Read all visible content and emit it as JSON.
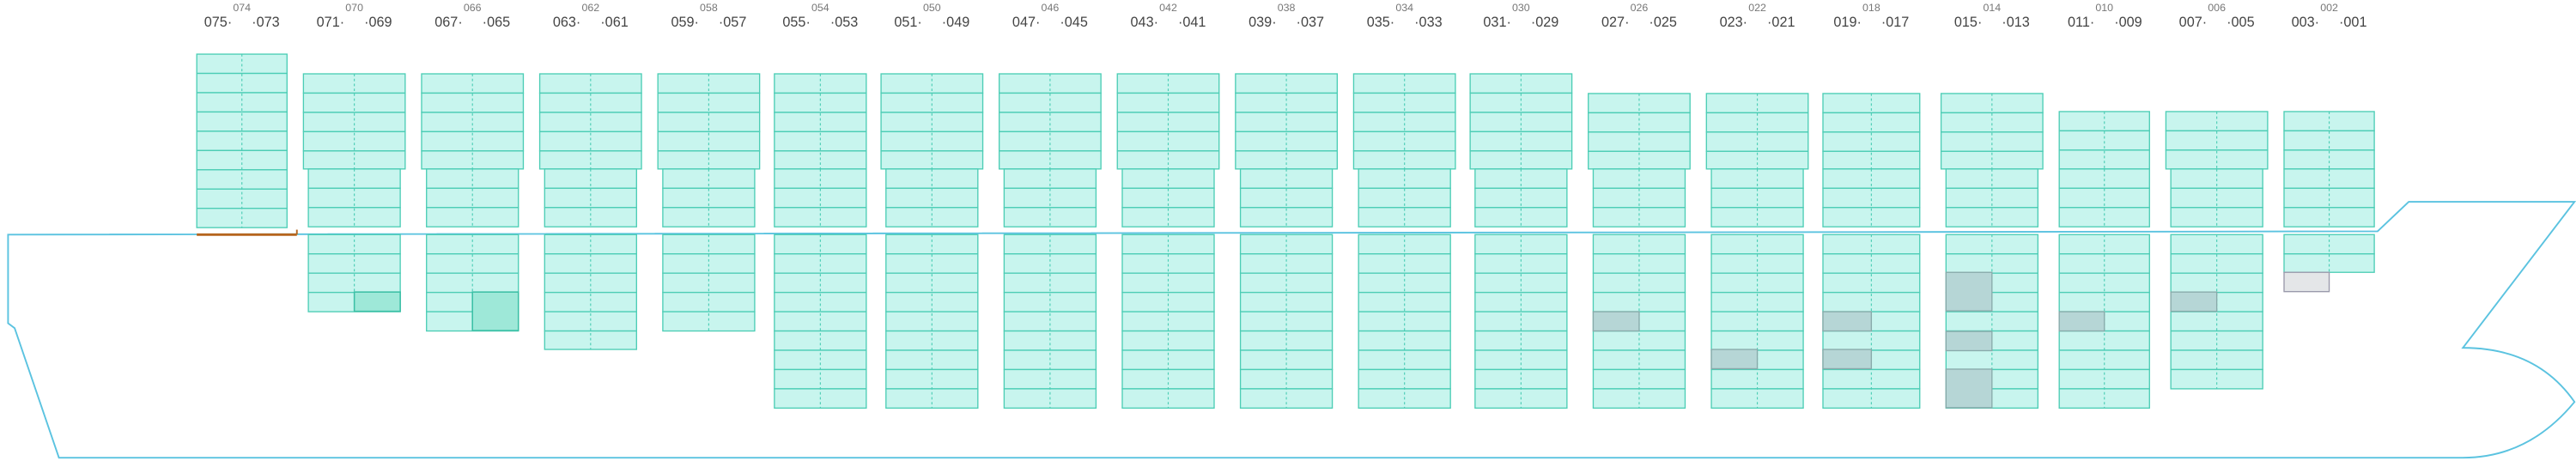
{
  "bays": [
    {
      "top": "074",
      "left": "075·",
      "right": "·073"
    },
    {
      "top": "070",
      "left": "071·",
      "right": "·069"
    },
    {
      "top": "066",
      "left": "067·",
      "right": "·065"
    },
    {
      "top": "062",
      "left": "063·",
      "right": "·061"
    },
    {
      "top": "058",
      "left": "059·",
      "right": "·057"
    },
    {
      "top": "054",
      "left": "055·",
      "right": "·053"
    },
    {
      "top": "050",
      "left": "051·",
      "right": "·049"
    },
    {
      "top": "046",
      "left": "047·",
      "right": "·045"
    },
    {
      "top": "042",
      "left": "043·",
      "right": "·041"
    },
    {
      "top": "038",
      "left": "039·",
      "right": "·037"
    },
    {
      "top": "034",
      "left": "035·",
      "right": "·033"
    },
    {
      "top": "030",
      "left": "031·",
      "right": "·029"
    },
    {
      "top": "026",
      "left": "027·",
      "right": "·025"
    },
    {
      "top": "022",
      "left": "023·",
      "right": "·021"
    },
    {
      "top": "018",
      "left": "019·",
      "right": "·017"
    },
    {
      "top": "014",
      "left": "015·",
      "right": "·013"
    },
    {
      "top": "010",
      "left": "011·",
      "right": "·009"
    },
    {
      "top": "006",
      "left": "007·",
      "right": "·005"
    },
    {
      "top": "002",
      "left": "003·",
      "right": "·001"
    }
  ]
}
